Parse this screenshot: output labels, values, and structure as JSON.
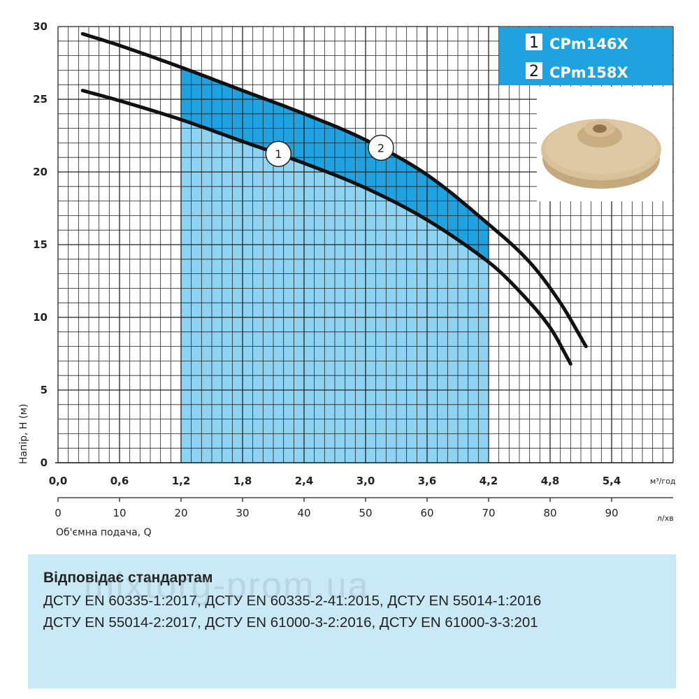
{
  "chart_data": {
    "type": "line",
    "ylabel": "Напір, H (м)",
    "xlabel": "Об'ємна подача, Q",
    "x_unit": "м³/год",
    "x2_unit": "л/хв",
    "xlim": [
      0,
      6.0
    ],
    "ylim": [
      0,
      30
    ],
    "y_ticks": [
      0,
      5,
      10,
      15,
      20,
      25,
      30
    ],
    "x_ticks": [
      "0,0",
      "0,6",
      "1,2",
      "1,8",
      "2,4",
      "3,0",
      "3,6",
      "4,2",
      "4,8",
      "5,4"
    ],
    "x_ticks_values": [
      0,
      0.6,
      1.2,
      1.8,
      2.4,
      3.0,
      3.6,
      4.2,
      4.8,
      5.4
    ],
    "x2_ticks": [
      "0",
      "10",
      "20",
      "30",
      "40",
      "50",
      "60",
      "70",
      "80",
      "90"
    ],
    "grid": true,
    "working_range": [
      1.2,
      4.2
    ],
    "series": [
      {
        "name": "CPm146X",
        "marker": "1",
        "x": [
          0.24,
          0.6,
          1.2,
          1.8,
          2.4,
          3.0,
          3.6,
          4.2,
          4.5,
          4.8,
          5.0
        ],
        "y": [
          25.6,
          24.9,
          23.6,
          22.1,
          20.6,
          18.9,
          16.7,
          13.8,
          11.8,
          9.3,
          6.8
        ]
      },
      {
        "name": "CPm158X",
        "marker": "2",
        "x": [
          0.24,
          0.6,
          1.2,
          1.8,
          2.4,
          3.0,
          3.6,
          4.2,
          4.6,
          4.9,
          5.15
        ],
        "y": [
          29.5,
          28.7,
          27.2,
          25.6,
          24.0,
          22.2,
          19.8,
          16.4,
          13.8,
          11.0,
          8.0
        ]
      }
    ]
  },
  "legend": {
    "items": [
      {
        "num": "1",
        "label": "CPm146X"
      },
      {
        "num": "2",
        "label": "CPm158X"
      }
    ]
  },
  "colors": {
    "light_fill": "#8ed3f2",
    "dark_fill": "#1fa2df",
    "legend_bg": "#1fa2df",
    "standards_bg": "#c9e9f7"
  },
  "standards": {
    "title": "Відповідає стандартам",
    "line1": "ДСТУ EN 60335-1:2017, ДСТУ EN 60335-2-41:2015, ДСТУ EN 55014-1:2016",
    "line2": "ДСТУ EN 55014-2:2017, ДСТУ EN 61000-3-2:2016, ДСТУ EN 61000-3-3:201"
  },
  "watermark": "mixtorg-prom.ua",
  "impeller_image": "impeller-photo"
}
